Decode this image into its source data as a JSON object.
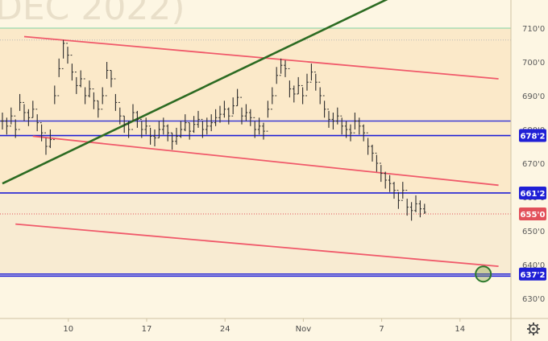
{
  "watermark": "DEC 2022)",
  "chart_data": {
    "type": "line",
    "subtype": "candlestick",
    "ylim": [
      621,
      718
    ],
    "y_ticks": [
      630,
      640,
      650,
      660,
      670,
      680,
      690,
      700,
      710
    ],
    "y_tick_labels": [
      "630'0",
      "640'0",
      "650'0",
      "660'0",
      "670'0",
      "680'0",
      "690'0",
      "700'0",
      "710'0"
    ],
    "x_ticks": [
      {
        "label": "10",
        "idx": 12
      },
      {
        "label": "17",
        "idx": 30
      },
      {
        "label": "24",
        "idx": 48
      },
      {
        "label": "Nov",
        "idx": 66
      },
      {
        "label": "7",
        "idx": 84
      },
      {
        "label": "14",
        "idx": 102
      }
    ],
    "n_slots": 114,
    "series": [
      {
        "close": [
          682.5,
          681.0,
          684.0,
          680.0,
          688.0,
          685.0,
          683.5,
          686.0,
          682.0,
          679.0,
          675.0,
          677.0,
          690.0,
          698.0,
          705.5,
          702.0,
          697.0,
          693.0,
          695.0,
          690.0,
          692.0,
          688.5,
          686.0,
          690.0,
          697.5,
          695.0,
          688.0,
          684.0,
          681.5,
          680.0,
          685.0,
          683.0,
          680.0,
          681.0,
          678.0,
          677.5,
          680.0,
          681.0,
          679.0,
          676.5,
          678.0,
          680.0,
          682.0,
          679.5,
          681.5,
          683.0,
          680.0,
          681.0,
          682.0,
          683.5,
          684.5,
          686.0,
          684.0,
          687.0,
          689.5,
          684.0,
          685.0,
          683.5,
          680.0,
          681.0,
          679.5,
          686.0,
          690.0,
          696.0,
          699.0,
          698.0,
          692.0,
          690.5,
          693.0,
          690.0,
          694.0,
          697.0,
          694.0,
          690.0,
          686.0,
          683.0,
          682.5,
          684.0,
          681.0,
          680.0,
          679.0,
          682.5,
          681.0,
          679.0,
          675.0,
          673.0,
          670.0,
          667.0,
          665.0,
          664.0,
          662.0,
          659.0,
          662.0,
          657.0,
          656.0,
          658.0,
          656.5,
          655.5
        ],
        "high": [
          685.0,
          683.5,
          686.5,
          683.0,
          690.5,
          687.5,
          686.0,
          688.5,
          684.5,
          681.5,
          677.5,
          680.0,
          693.0,
          701.0,
          706.5,
          704.5,
          699.5,
          695.5,
          697.5,
          692.5,
          694.5,
          691.0,
          688.5,
          692.5,
          700.0,
          697.5,
          690.5,
          686.5,
          684.0,
          682.5,
          687.5,
          685.5,
          682.5,
          683.5,
          680.5,
          680.0,
          682.5,
          683.5,
          681.5,
          679.0,
          680.5,
          682.5,
          684.5,
          682.0,
          684.0,
          685.5,
          682.5,
          683.5,
          684.5,
          686.0,
          687.0,
          688.5,
          686.5,
          689.5,
          692.0,
          686.5,
          687.5,
          686.0,
          682.5,
          683.5,
          682.0,
          688.5,
          692.5,
          698.5,
          701.0,
          700.5,
          694.5,
          693.0,
          695.5,
          692.5,
          696.5,
          699.5,
          696.5,
          692.5,
          688.5,
          685.5,
          685.0,
          686.5,
          683.5,
          682.5,
          681.5,
          685.0,
          683.5,
          681.5,
          677.5,
          675.5,
          672.5,
          669.5,
          667.5,
          666.5,
          664.5,
          661.5,
          664.5,
          659.5,
          658.5,
          660.5,
          659.0,
          658.0
        ],
        "low": [
          680.0,
          678.5,
          681.5,
          677.5,
          685.5,
          682.5,
          681.0,
          683.5,
          679.5,
          676.5,
          672.5,
          674.5,
          687.5,
          695.5,
          701.0,
          699.5,
          694.5,
          690.5,
          692.5,
          687.5,
          689.5,
          686.0,
          683.5,
          687.5,
          695.0,
          692.5,
          685.5,
          681.5,
          679.0,
          677.5,
          682.5,
          680.5,
          677.5,
          678.5,
          675.5,
          675.0,
          677.5,
          678.5,
          676.5,
          674.0,
          675.5,
          677.5,
          679.5,
          677.0,
          679.0,
          680.5,
          677.5,
          678.5,
          679.5,
          681.0,
          682.0,
          683.5,
          681.5,
          684.5,
          687.0,
          681.5,
          682.5,
          681.0,
          677.5,
          678.5,
          677.0,
          683.5,
          687.5,
          693.5,
          696.5,
          695.5,
          689.5,
          688.0,
          690.5,
          687.5,
          691.5,
          694.5,
          691.5,
          687.5,
          683.5,
          680.5,
          680.0,
          681.5,
          678.5,
          677.5,
          676.5,
          680.0,
          678.5,
          676.5,
          672.5,
          670.5,
          667.5,
          664.5,
          662.5,
          661.5,
          659.5,
          656.5,
          659.5,
          654.5,
          653.0,
          655.5,
          654.0,
          655.0
        ]
      }
    ],
    "horizontal_levels": [
      {
        "value": 710.0,
        "color": "#7fd3a4",
        "label": ""
      },
      {
        "value": 706.5,
        "color": "#b9b9b9",
        "label": ""
      },
      {
        "value": 682.5,
        "color": "#3c3cd6",
        "label": ""
      },
      {
        "value": 678.2,
        "color": "#1f1fd6",
        "label": "678'2"
      },
      {
        "value": 661.2,
        "color": "#1f1fd6",
        "label": "661'2"
      },
      {
        "value": 655.0,
        "color": "#e2505a",
        "label": "655'0"
      },
      {
        "value": 637.2,
        "color": "#1f1fd6",
        "label": "637'2"
      },
      {
        "value": 636.6,
        "color": "#1f1fd6",
        "label": ""
      }
    ],
    "trendlines": [
      {
        "name": "resistance-upper",
        "color": "#f0596a",
        "x1": 5,
        "y1": 707.5,
        "x2": 114,
        "y2": 695.0
      },
      {
        "name": "channel-middle",
        "color": "#f0596a",
        "x1": 7,
        "y1": 678.0,
        "x2": 114,
        "y2": 663.5
      },
      {
        "name": "channel-lower",
        "color": "#f0596a",
        "x1": 3,
        "y1": 652.0,
        "x2": 114,
        "y2": 639.5
      },
      {
        "name": "support-uptrend",
        "color": "#2c6b22",
        "x1": 0,
        "y1": 664.0,
        "x2": 94,
        "y2": 722.0
      }
    ],
    "target_marker": {
      "idx": 110.5,
      "value": 637.2,
      "color": "#2d7a2d"
    },
    "grid": false,
    "xlabel": "",
    "ylabel": "",
    "title": ""
  }
}
